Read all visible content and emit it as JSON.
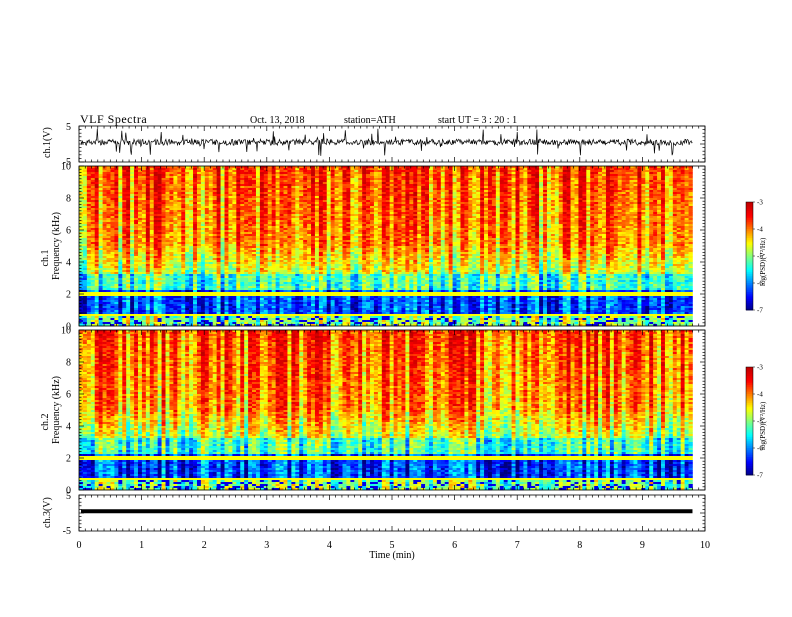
{
  "header": {
    "title": "VLF  Spectra",
    "date": "Oct. 13, 2018",
    "station": "station=ATH",
    "start": "start  UT  =    3  : 20 : 1"
  },
  "chart_data": [
    {
      "type": "line",
      "panel": "ch1-waveform",
      "ylabel": "ch.1(V)",
      "yticks": [
        "5",
        "-5"
      ],
      "ylim": [
        -5,
        5
      ],
      "xlim": [
        0,
        10
      ],
      "series_description_level": 0
    },
    {
      "type": "heatmap",
      "panel": "ch1-spectrogram",
      "ylabel_line1": "ch.1",
      "ylabel_line2": "Frequency  (kHz)",
      "yticks": [
        "0",
        "2",
        "4",
        "6",
        "8",
        "10"
      ],
      "ylim": [
        0,
        10
      ],
      "xlim": [
        0,
        9.8
      ],
      "colorbar": {
        "label": "log(PSD)(V²/Hz)",
        "ticks": [
          "-3",
          "-4",
          "-5",
          "-6",
          "-7"
        ],
        "range": [
          -7,
          -3
        ]
      }
    },
    {
      "type": "heatmap",
      "panel": "ch2-spectrogram",
      "ylabel_line1": "ch.2",
      "ylabel_line2": "Frequency  (kHz)",
      "yticks": [
        "0",
        "2",
        "4",
        "6",
        "8",
        "10"
      ],
      "ylim": [
        0,
        10
      ],
      "xlim": [
        0,
        9.8
      ],
      "colorbar": {
        "label": "log(PSD)(V²/Hz)",
        "ticks": [
          "-3",
          "-4",
          "-5",
          "-6",
          "-7"
        ],
        "range": [
          -7,
          -3
        ]
      }
    },
    {
      "type": "line",
      "panel": "ch3-waveform",
      "ylabel": "ch.3(V)",
      "yticks": [
        "5",
        "-5"
      ],
      "ylim": [
        -5,
        5
      ],
      "xlim": [
        0,
        10
      ]
    }
  ],
  "xaxis": {
    "label": "Time  (min)",
    "ticks": [
      "0",
      "1",
      "2",
      "3",
      "4",
      "5",
      "6",
      "7",
      "8",
      "9",
      "10"
    ]
  }
}
